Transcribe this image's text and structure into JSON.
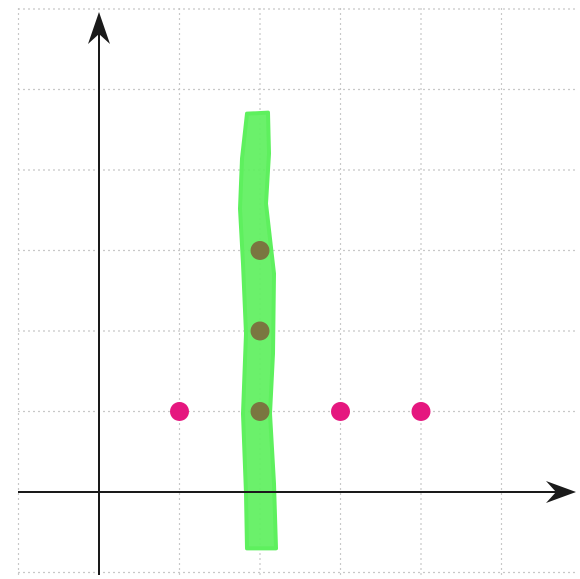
{
  "chart_data": {
    "type": "scatter",
    "title": "",
    "xlabel": "",
    "ylabel": "",
    "xlim": [
      -1,
      6
    ],
    "ylim": [
      -1,
      7
    ],
    "grid": true,
    "axes_arrows": true,
    "series": [
      {
        "color": "#e5177f",
        "points": [
          [
            1,
            1
          ],
          [
            3,
            1
          ],
          [
            4,
            1
          ]
        ]
      },
      {
        "color": "#7a7640",
        "points": [
          [
            2,
            1
          ],
          [
            2,
            2
          ],
          [
            2,
            3
          ]
        ]
      }
    ],
    "highlight": {
      "x": 2,
      "y_from": -0.7,
      "y_to": 4.7,
      "color": "#5ef05e",
      "label": ""
    }
  }
}
